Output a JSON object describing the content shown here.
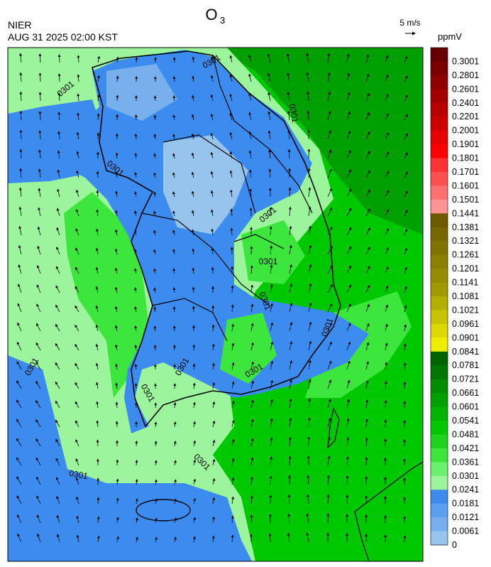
{
  "header": {
    "title": "O",
    "title_subscript": "3",
    "agency": "NIER",
    "timestamp": "AUG 31 2025 02:00 KST",
    "wind_scale": "5 m/s"
  },
  "colorbar": {
    "unit": "ppmV",
    "labels": [
      "0.3001",
      "0.2801",
      "0.2601",
      "0.2401",
      "0.2201",
      "0.2001",
      "0.1901",
      "0.1801",
      "0.1701",
      "0.1601",
      "0.1501",
      "0.1441",
      "0.1381",
      "0.1321",
      "0.1261",
      "0.1201",
      "0.1141",
      "0.1081",
      "0.1021",
      "0.0961",
      "0.0901",
      "0.0841",
      "0.0781",
      "0.0721",
      "0.0661",
      "0.0601",
      "0.0541",
      "0.0481",
      "0.0421",
      "0.0361",
      "0.0301",
      "0.0241",
      "0.0181",
      "0.0121",
      "0.0061",
      "0"
    ],
    "colors": [
      "#660000",
      "#7a0000",
      "#8e0000",
      "#a30000",
      "#b80000",
      "#cc0000",
      "#e60000",
      "#ff0000",
      "#ff3333",
      "#ff5050",
      "#ff7070",
      "#ff9494",
      "#6e5a00",
      "#786600",
      "#827300",
      "#8c8000",
      "#968c00",
      "#a09a00",
      "#b4ae00",
      "#c8c400",
      "#dcd800",
      "#f0ee00",
      "#006400",
      "#007800",
      "#008c00",
      "#00a000",
      "#00b400",
      "#00c800",
      "#1ed21e",
      "#3ce63c",
      "#6af06a",
      "#9cf59c",
      "#3c8cf0",
      "#5a9ff0",
      "#78b0ee",
      "#96c4ec"
    ]
  },
  "map": {
    "contour_labels": [
      "0301",
      "0301",
      "0301",
      "0301",
      "0301",
      "0301",
      "0301",
      "0301",
      "0301",
      "0301",
      "0301",
      "0301",
      "0301",
      "0301"
    ]
  }
}
